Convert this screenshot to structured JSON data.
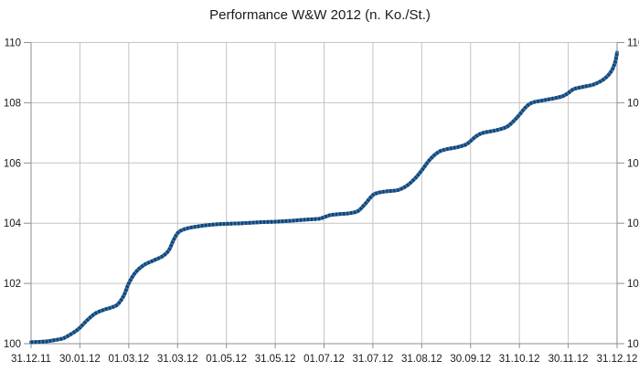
{
  "chart_data": {
    "type": "line",
    "title": "Performance W&W 2012 (n. Ko./St.)",
    "x_tick_labels": [
      "31.12.11",
      "30.01.12",
      "01.03.12",
      "31.03.12",
      "01.05.12",
      "31.05.12",
      "01.07.12",
      "31.07.12",
      "31.08.12",
      "30.09.12",
      "31.10.12",
      "30.11.12",
      "31.12.12"
    ],
    "x_categories": 12,
    "y_ticks": [
      100,
      102,
      104,
      106,
      108,
      110
    ],
    "ylim": [
      100,
      110
    ],
    "y_axis_sides": [
      "left",
      "right"
    ],
    "grid": true,
    "legend": "none",
    "colors": {
      "line": "#2e6da4",
      "line_dark": "#16406e",
      "grid": "#c3c3c3",
      "axis": "#8e8e8e",
      "text": "#1a1a1a",
      "background": "#ffffff"
    },
    "series": [
      {
        "points": [
          [
            0.0,
            100.05
          ],
          [
            0.16,
            100.06
          ],
          [
            0.33,
            100.08
          ],
          [
            0.49,
            100.12
          ],
          [
            0.66,
            100.18
          ],
          [
            0.82,
            100.32
          ],
          [
            0.98,
            100.5
          ],
          [
            1.15,
            100.78
          ],
          [
            1.31,
            101.0
          ],
          [
            1.48,
            101.12
          ],
          [
            1.64,
            101.2
          ],
          [
            1.77,
            101.3
          ],
          [
            1.9,
            101.6
          ],
          [
            2.0,
            102.0
          ],
          [
            2.13,
            102.35
          ],
          [
            2.3,
            102.6
          ],
          [
            2.49,
            102.75
          ],
          [
            2.69,
            102.9
          ],
          [
            2.82,
            103.1
          ],
          [
            2.92,
            103.45
          ],
          [
            3.02,
            103.7
          ],
          [
            3.18,
            103.82
          ],
          [
            3.44,
            103.9
          ],
          [
            3.77,
            103.96
          ],
          [
            4.0,
            103.98
          ],
          [
            4.33,
            104.0
          ],
          [
            4.66,
            104.03
          ],
          [
            4.98,
            104.05
          ],
          [
            5.31,
            104.08
          ],
          [
            5.64,
            104.12
          ],
          [
            5.9,
            104.15
          ],
          [
            6.0,
            104.2
          ],
          [
            6.13,
            104.27
          ],
          [
            6.3,
            104.3
          ],
          [
            6.52,
            104.33
          ],
          [
            6.69,
            104.4
          ],
          [
            6.82,
            104.6
          ],
          [
            6.98,
            104.9
          ],
          [
            7.08,
            105.0
          ],
          [
            7.28,
            105.06
          ],
          [
            7.51,
            105.1
          ],
          [
            7.7,
            105.25
          ],
          [
            7.87,
            105.5
          ],
          [
            8.0,
            105.75
          ],
          [
            8.16,
            106.1
          ],
          [
            8.33,
            106.35
          ],
          [
            8.49,
            106.45
          ],
          [
            8.72,
            106.52
          ],
          [
            8.89,
            106.6
          ],
          [
            8.98,
            106.7
          ],
          [
            9.11,
            106.88
          ],
          [
            9.25,
            107.0
          ],
          [
            9.51,
            107.08
          ],
          [
            9.74,
            107.2
          ],
          [
            9.9,
            107.42
          ],
          [
            10.0,
            107.6
          ],
          [
            10.13,
            107.85
          ],
          [
            10.26,
            108.0
          ],
          [
            10.49,
            108.08
          ],
          [
            10.72,
            108.15
          ],
          [
            10.89,
            108.22
          ],
          [
            10.98,
            108.3
          ],
          [
            11.11,
            108.45
          ],
          [
            11.28,
            108.52
          ],
          [
            11.51,
            108.6
          ],
          [
            11.67,
            108.72
          ],
          [
            11.8,
            108.88
          ],
          [
            11.9,
            109.1
          ],
          [
            11.97,
            109.4
          ],
          [
            12.0,
            109.67
          ]
        ]
      }
    ]
  }
}
